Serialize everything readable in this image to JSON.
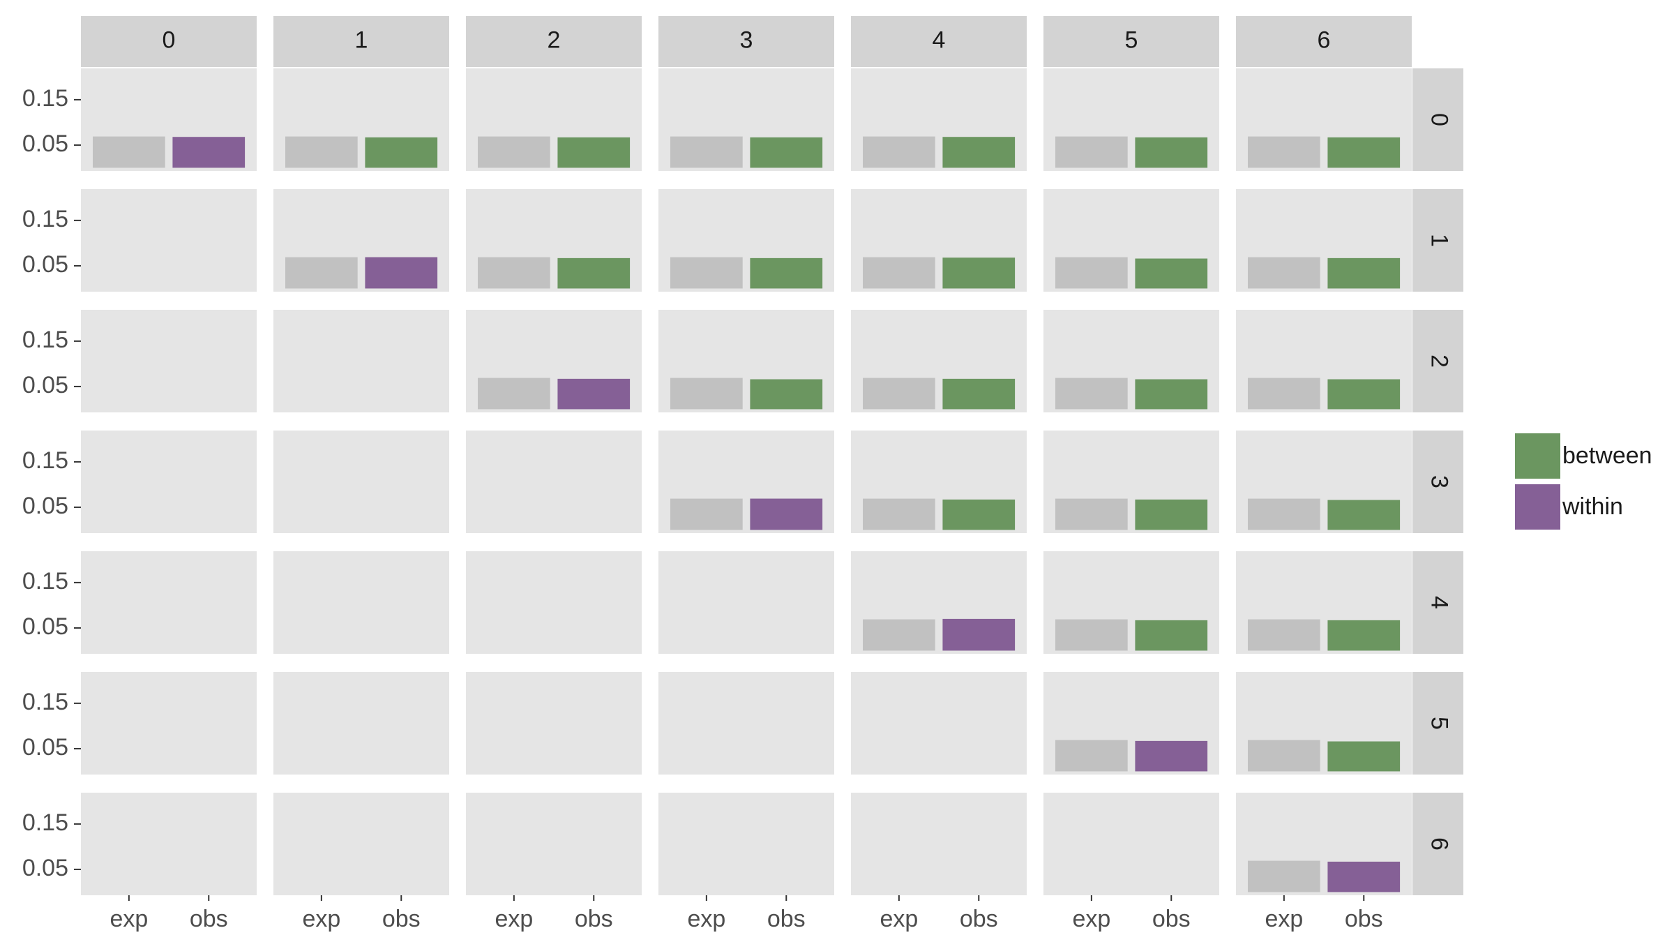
{
  "chart_data": {
    "type": "bar",
    "columns": [
      "0",
      "1",
      "2",
      "3",
      "4",
      "5",
      "6"
    ],
    "rows": [
      "0",
      "1",
      "2",
      "3",
      "4",
      "5",
      "6"
    ],
    "categories": [
      "exp",
      "obs"
    ],
    "series": [
      {
        "name": "between",
        "color": "#6b9660"
      },
      {
        "name": "within",
        "color": "#856096"
      }
    ],
    "ylim": [
      -0.007,
      0.219
    ],
    "yticks": [
      0.05,
      0.15
    ],
    "grid": false,
    "legend": "right",
    "panels": [
      [
        {
          "values": [
            0.069,
            0.068
          ],
          "colors": [
            "#c1c1c1",
            "#856096"
          ]
        },
        {
          "values": [
            0.069,
            0.067
          ],
          "colors": [
            "#c1c1c1",
            "#6b9660"
          ]
        },
        {
          "values": [
            0.069,
            0.067
          ],
          "colors": [
            "#c1c1c1",
            "#6b9660"
          ]
        },
        {
          "values": [
            0.069,
            0.067
          ],
          "colors": [
            "#c1c1c1",
            "#6b9660"
          ]
        },
        {
          "values": [
            0.069,
            0.068
          ],
          "colors": [
            "#c1c1c1",
            "#6b9660"
          ]
        },
        {
          "values": [
            0.069,
            0.067
          ],
          "colors": [
            "#c1c1c1",
            "#6b9660"
          ]
        },
        {
          "values": [
            0.069,
            0.067
          ],
          "colors": [
            "#c1c1c1",
            "#6b9660"
          ]
        }
      ],
      [
        null,
        {
          "values": [
            0.069,
            0.069
          ],
          "colors": [
            "#c1c1c1",
            "#856096"
          ]
        },
        {
          "values": [
            0.069,
            0.067
          ],
          "colors": [
            "#c1c1c1",
            "#6b9660"
          ]
        },
        {
          "values": [
            0.069,
            0.067
          ],
          "colors": [
            "#c1c1c1",
            "#6b9660"
          ]
        },
        {
          "values": [
            0.069,
            0.068
          ],
          "colors": [
            "#c1c1c1",
            "#6b9660"
          ]
        },
        {
          "values": [
            0.069,
            0.066
          ],
          "colors": [
            "#c1c1c1",
            "#6b9660"
          ]
        },
        {
          "values": [
            0.069,
            0.067
          ],
          "colors": [
            "#c1c1c1",
            "#6b9660"
          ]
        }
      ],
      [
        null,
        null,
        {
          "values": [
            0.069,
            0.067
          ],
          "colors": [
            "#c1c1c1",
            "#856096"
          ]
        },
        {
          "values": [
            0.069,
            0.066
          ],
          "colors": [
            "#c1c1c1",
            "#6b9660"
          ]
        },
        {
          "values": [
            0.069,
            0.067
          ],
          "colors": [
            "#c1c1c1",
            "#6b9660"
          ]
        },
        {
          "values": [
            0.069,
            0.066
          ],
          "colors": [
            "#c1c1c1",
            "#6b9660"
          ]
        },
        {
          "values": [
            0.069,
            0.066
          ],
          "colors": [
            "#c1c1c1",
            "#6b9660"
          ]
        }
      ],
      [
        null,
        null,
        null,
        {
          "values": [
            0.069,
            0.069
          ],
          "colors": [
            "#c1c1c1",
            "#856096"
          ]
        },
        {
          "values": [
            0.069,
            0.067
          ],
          "colors": [
            "#c1c1c1",
            "#6b9660"
          ]
        },
        {
          "values": [
            0.069,
            0.067
          ],
          "colors": [
            "#c1c1c1",
            "#6b9660"
          ]
        },
        {
          "values": [
            0.069,
            0.066
          ],
          "colors": [
            "#c1c1c1",
            "#6b9660"
          ]
        }
      ],
      [
        null,
        null,
        null,
        null,
        {
          "values": [
            0.069,
            0.07
          ],
          "colors": [
            "#c1c1c1",
            "#856096"
          ]
        },
        {
          "values": [
            0.069,
            0.067
          ],
          "colors": [
            "#c1c1c1",
            "#6b9660"
          ]
        },
        {
          "values": [
            0.069,
            0.067
          ],
          "colors": [
            "#c1c1c1",
            "#6b9660"
          ]
        }
      ],
      [
        null,
        null,
        null,
        null,
        null,
        {
          "values": [
            0.069,
            0.067
          ],
          "colors": [
            "#c1c1c1",
            "#856096"
          ]
        },
        {
          "values": [
            0.069,
            0.066
          ],
          "colors": [
            "#c1c1c1",
            "#6b9660"
          ]
        }
      ],
      [
        null,
        null,
        null,
        null,
        null,
        null,
        {
          "values": [
            0.069,
            0.067
          ],
          "colors": [
            "#c1c1c1",
            "#856096"
          ]
        }
      ]
    ]
  }
}
